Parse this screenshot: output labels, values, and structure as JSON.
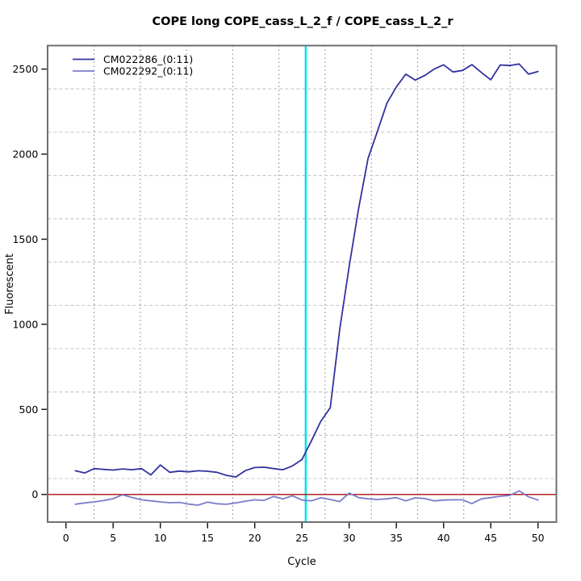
{
  "title": "COPE long COPE_cass_L_2_f / COPE_cass_L_2_r",
  "chart_data": {
    "type": "line",
    "title": "COPE long COPE_cass_L_2_f / COPE_cass_L_2_r",
    "xlabel": "Cycle",
    "ylabel": "Fluorescent",
    "xlim": [
      -2,
      52
    ],
    "ylim": [
      -165,
      2640
    ],
    "x_ticks": [
      0,
      5,
      10,
      15,
      20,
      25,
      30,
      35,
      40,
      45,
      50
    ],
    "y_ticks": [
      0,
      500,
      1000,
      1500,
      2000,
      2500
    ],
    "grid": {
      "vertical": {
        "style": "dotted",
        "color": "#7d7d7d",
        "divisions": 11
      },
      "horizontal": {
        "style": "dashed",
        "color": "#c9c9c9",
        "divisions": 11
      }
    },
    "x": [
      1,
      2,
      3,
      4,
      5,
      6,
      7,
      8,
      9,
      10,
      11,
      12,
      13,
      14,
      15,
      16,
      17,
      18,
      19,
      20,
      21,
      22,
      23,
      24,
      25,
      26,
      27,
      28,
      29,
      30,
      31,
      32,
      33,
      34,
      35,
      36,
      37,
      38,
      39,
      40,
      41,
      42,
      43,
      44,
      45,
      46,
      47,
      48,
      49,
      50
    ],
    "series": [
      {
        "name": "CM022286_(0:11)",
        "color": "#3232a0",
        "values": [
          139,
          126,
          152,
          147,
          143,
          150,
          145,
          152,
          115,
          173,
          130,
          137,
          133,
          139,
          136,
          130,
          112,
          103,
          140,
          158,
          160,
          152,
          145,
          168,
          205,
          315,
          430,
          510,
          970,
          1340,
          1680,
          1975,
          2135,
          2300,
          2395,
          2470,
          2435,
          2462,
          2500,
          2525,
          2483,
          2492,
          2526,
          2480,
          2437,
          2524,
          2521,
          2530,
          2470,
          2486
        ]
      },
      {
        "name": "CM022292_(0:11)",
        "color": "#7b7bcb",
        "values": [
          -58,
          -50,
          -44,
          -36,
          -25,
          -2,
          -18,
          -32,
          -38,
          -44,
          -49,
          -47,
          -57,
          -63,
          -45,
          -55,
          -58,
          -50,
          -40,
          -32,
          -35,
          -12,
          -26,
          -8,
          -33,
          -38,
          -20,
          -30,
          -42,
          8,
          -19,
          -26,
          -30,
          -26,
          -19,
          -38,
          -20,
          -24,
          -38,
          -33,
          -32,
          -32,
          -54,
          -26,
          -19,
          -11,
          -6,
          21,
          -14,
          -33
        ]
      }
    ],
    "threshold_line": {
      "axis": "x",
      "value": 25.4,
      "color": "#00e0e6"
    },
    "baseline": {
      "axis": "y",
      "value": 0,
      "color": "#b22222"
    },
    "legend": {
      "position": "top-left",
      "entries": [
        "CM022286_(0:11)",
        "CM022292_(0:11)"
      ]
    }
  }
}
